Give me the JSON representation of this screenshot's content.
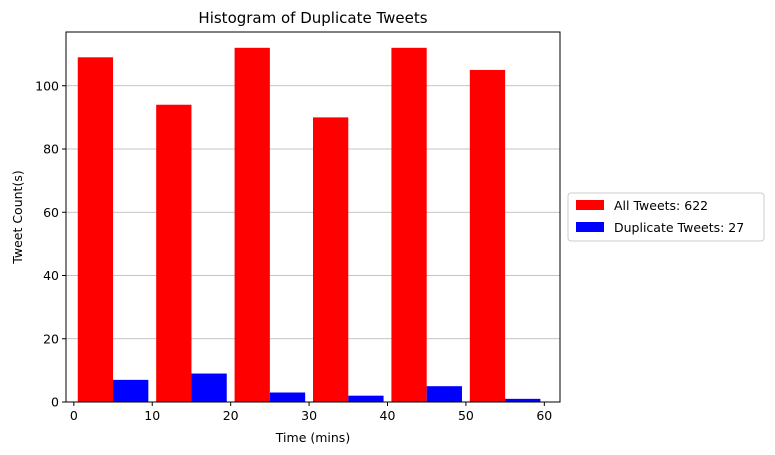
{
  "chart_data": {
    "type": "bar",
    "title": "Histogram of Duplicate Tweets",
    "xlabel": "Time (mins)",
    "ylabel": "Tweet Count(s)",
    "xlim": [
      -1,
      62
    ],
    "ylim": [
      0,
      117
    ],
    "xticks": [
      0,
      10,
      20,
      30,
      40,
      50,
      60
    ],
    "yticks": [
      0,
      20,
      40,
      60,
      80,
      100
    ],
    "grid": "y",
    "legend_position": "right",
    "series": [
      {
        "name": "All Tweets: 622",
        "color": "#ff0000",
        "bins": [
          [
            0.5,
            5
          ],
          [
            10.5,
            15
          ],
          [
            20.5,
            25
          ],
          [
            30.5,
            35
          ],
          [
            40.5,
            45
          ],
          [
            50.5,
            55
          ]
        ],
        "values": [
          109,
          94,
          112,
          90,
          112,
          105
        ]
      },
      {
        "name": "Duplicate Tweets: 27",
        "color": "#0000ff",
        "bins": [
          [
            5,
            9.5
          ],
          [
            15,
            19.5
          ],
          [
            25,
            29.5
          ],
          [
            35,
            39.5
          ],
          [
            45,
            49.5
          ],
          [
            55,
            59.5
          ]
        ],
        "values": [
          7,
          9,
          3,
          2,
          5,
          1
        ]
      }
    ]
  }
}
